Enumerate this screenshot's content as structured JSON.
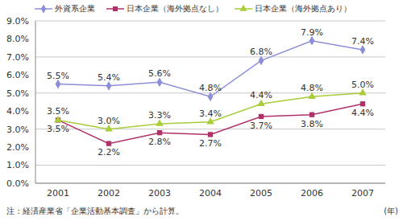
{
  "chart_data": {
    "type": "line",
    "categories": [
      "2001",
      "2002",
      "2003",
      "2004",
      "2005",
      "2006",
      "2007"
    ],
    "series": [
      {
        "name": "外資系企業",
        "color": "#8c8fd8",
        "marker": "diamond",
        "values": [
          5.5,
          5.4,
          5.6,
          4.8,
          6.8,
          7.9,
          7.4
        ],
        "value_labels": [
          "5.5%",
          "5.4%",
          "5.6%",
          "4.8%",
          "6.8%",
          "7.9%",
          "7.4%"
        ]
      },
      {
        "name": "日本企業（海外拠点なし）",
        "color": "#b0306a",
        "marker": "square",
        "values": [
          3.5,
          2.2,
          2.8,
          2.7,
          3.7,
          3.8,
          4.4
        ],
        "value_labels": [
          "3.5%",
          "2.2%",
          "2.8%",
          "2.7%",
          "3.7%",
          "3.8%",
          "4.4%"
        ]
      },
      {
        "name": "日本企業（海外拠点あり）",
        "color": "#a8cc3a",
        "marker": "triangle",
        "values": [
          3.5,
          3.0,
          3.3,
          3.4,
          4.4,
          4.8,
          5.0
        ],
        "value_labels": [
          "3.5%",
          "3.0%",
          "3.3%",
          "3.4%",
          "4.4%",
          "4.8%",
          "5.0%"
        ]
      }
    ],
    "ylim": [
      0,
      9
    ],
    "yticks": [
      {
        "value": 0,
        "label": "0.0%"
      },
      {
        "value": 1,
        "label": "1.0%"
      },
      {
        "value": 2,
        "label": "2.0%"
      },
      {
        "value": 3,
        "label": "3.0%"
      },
      {
        "value": 4,
        "label": "4.0%"
      },
      {
        "value": 5,
        "label": "5.0%"
      },
      {
        "value": 6,
        "label": "6.0%"
      },
      {
        "value": 7,
        "label": "7.0%"
      },
      {
        "value": 8,
        "label": "8.0%"
      },
      {
        "value": 9,
        "label": "9.0%"
      }
    ],
    "grid": true,
    "legend": "top",
    "data_labels": true,
    "x_label": "(年)",
    "note": "注：経済産業省「企業活動基本調査」から計算。"
  }
}
